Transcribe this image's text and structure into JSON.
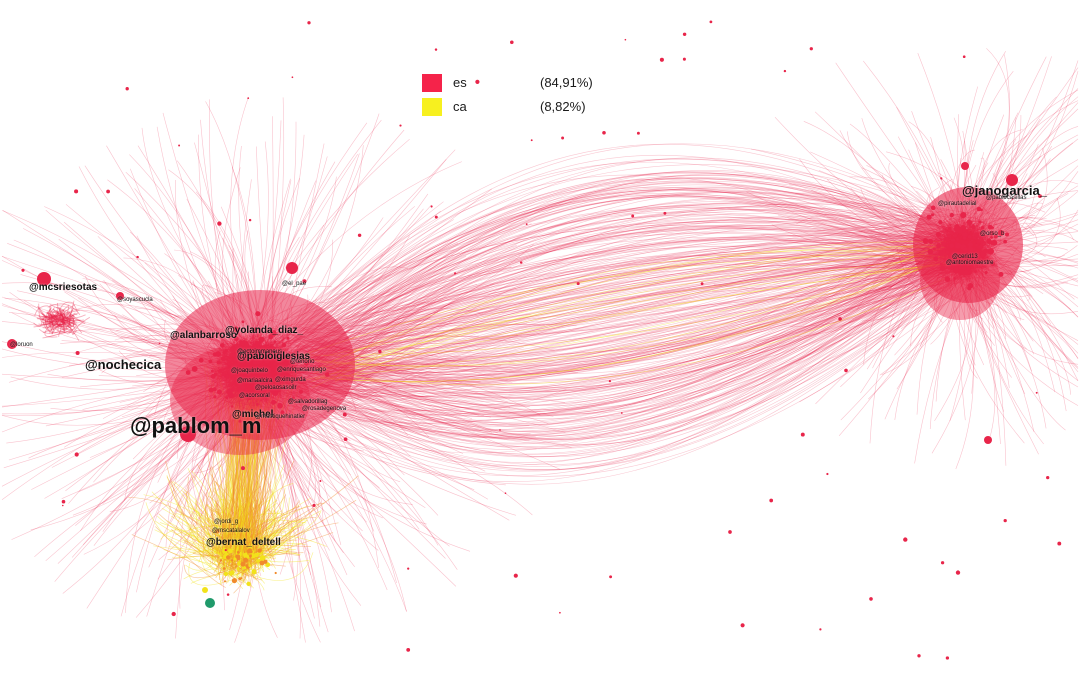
{
  "legend": [
    {
      "code": "es",
      "percent": "(84,91%)",
      "color": "#f5234a"
    },
    {
      "code": "ca",
      "percent": "(8,82%)",
      "color": "#f7f01f"
    }
  ],
  "colors": {
    "es_edge": "#e8254a",
    "ca_edge": "#f2e21a",
    "mixed_edge": "#f08a2a",
    "other_edge": "#1f9a6b",
    "background": "#ffffff"
  },
  "labels": {
    "pablom_m": "@pablom_m",
    "nochecica": "@nochecica",
    "alanbarroso": "@alanbarroso",
    "yolanda_diaz": "@yolanda_diaz_",
    "michel": "@michel",
    "bernat_deltell": "@bernat_deltell",
    "janogarcia": "@janogarcia_",
    "el_pae": "@el_pae",
    "pabloiglesias": "@pabloiglesias",
    "enriquesantiago": "@enriquesantiago",
    "tenorio": "@tenorio",
    "mcsriesotas": "@mcsriesotas",
    "left_small": "@loruon",
    "left_mid": "@soyascucla",
    "cluster_small_1": "@ectoimmaneus",
    "cluster_small_2": "@joaquinbelo",
    "cluster_small_3": "@mariaalcira",
    "cluster_small_4": "@ximgurda",
    "cluster_small_5": "@acorsoral",
    "cluster_small_6": "@salvadorillag",
    "cluster_small_7": "@rosadegenova",
    "cluster_small_8": "@peloaosasoilr",
    "cluster_small_9": "@mustiquehinatier",
    "cat_small_1": "@jordi_g",
    "cat_small_2": "@mscatalalov",
    "right_small_1": "@pirautadelial",
    "right_small_2": "@pablocasillas",
    "right_small_3": "@orso_b",
    "right_small_4": "@cerid13",
    "right_small_5": "@antoniomaestre"
  }
}
